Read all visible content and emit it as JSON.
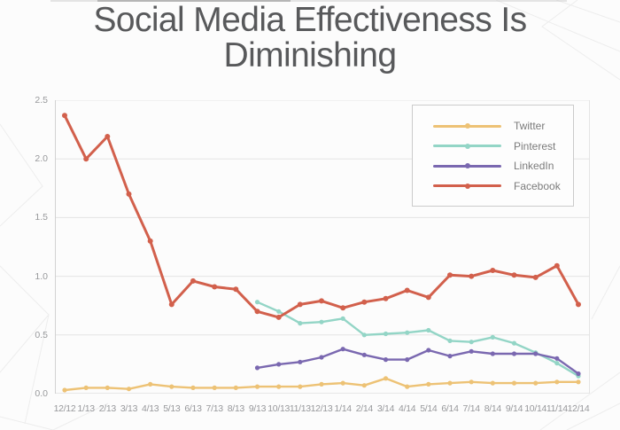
{
  "title": {
    "line1": "Social Media Effectiveness Is",
    "line2": "Diminishing"
  },
  "chart_data": {
    "type": "line",
    "title": "Social Media Effectiveness Is Diminishing",
    "xlabel": "",
    "ylabel": "",
    "ylim": [
      0,
      2.5
    ],
    "y_ticks": [
      "0.0",
      "0.5",
      "1.0",
      "1.5",
      "2.0",
      "2.5"
    ],
    "grid": true,
    "legend_position": "top-right-inside",
    "categories": [
      "12/12",
      "1/13",
      "2/13",
      "3/13",
      "4/13",
      "5/13",
      "6/13",
      "7/13",
      "8/13",
      "9/13",
      "10/13",
      "11/13",
      "12/13",
      "1/14",
      "2/14",
      "3/14",
      "4/14",
      "5/14",
      "6/14",
      "7/14",
      "8/14",
      "9/14",
      "10/14",
      "11/14",
      "12/14"
    ],
    "series": [
      {
        "name": "Twitter",
        "color": "#edc275",
        "values": [
          0.03,
          0.05,
          0.05,
          0.04,
          0.08,
          0.06,
          0.05,
          0.05,
          0.05,
          0.06,
          0.06,
          0.06,
          0.08,
          0.09,
          0.07,
          0.13,
          0.06,
          0.08,
          0.09,
          0.1,
          0.09,
          0.09,
          0.09,
          0.1,
          0.1
        ]
      },
      {
        "name": "Pinterest",
        "color": "#93d5c6",
        "values": [
          null,
          null,
          null,
          null,
          null,
          null,
          null,
          null,
          null,
          0.78,
          0.7,
          0.6,
          0.61,
          0.64,
          0.5,
          0.51,
          0.52,
          0.54,
          0.45,
          0.44,
          0.48,
          0.43,
          0.35,
          0.26,
          0.15
        ]
      },
      {
        "name": "LinkedIn",
        "color": "#7a68b0",
        "values": [
          null,
          null,
          null,
          null,
          null,
          null,
          null,
          null,
          null,
          0.22,
          0.25,
          0.27,
          0.31,
          0.38,
          0.33,
          0.29,
          0.29,
          0.37,
          0.32,
          0.36,
          0.34,
          0.34,
          0.34,
          0.3,
          0.17
        ]
      },
      {
        "name": "Facebook",
        "color": "#d2604c",
        "values": [
          2.37,
          2.0,
          2.19,
          1.7,
          1.3,
          0.76,
          0.96,
          0.91,
          0.89,
          0.7,
          0.65,
          0.76,
          0.79,
          0.73,
          0.78,
          0.81,
          0.88,
          0.82,
          1.01,
          1.0,
          1.05,
          1.01,
          0.99,
          1.09,
          0.76
        ]
      }
    ]
  },
  "colors": {
    "background": "#fcfcfc",
    "title_text": "#58595b",
    "axis_text": "#97989b",
    "gridline": "#e4e4e4",
    "axis_line": "#d2d2d2",
    "legend_border": "#cbcbcb"
  }
}
